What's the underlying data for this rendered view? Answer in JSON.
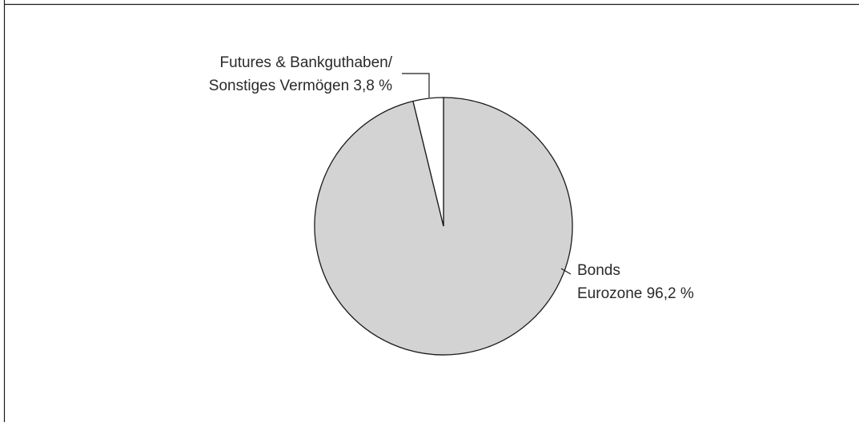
{
  "chart_data": {
    "type": "pie",
    "title": "",
    "slices": [
      {
        "name": "Bonds Eurozone",
        "value": 96.2,
        "label_lines": [
          "Bonds",
          "Eurozone 96,2 %"
        ],
        "color": "#d3d3d4"
      },
      {
        "name": "Futures & Bankguthaben/ Sonstiges Vermögen",
        "value": 3.8,
        "label_lines": [
          "Futures & Bankguthaben/",
          "Sonstiges Vermögen 3,8 %"
        ],
        "color": "#ffffff"
      }
    ],
    "start_angle_deg": 0,
    "direction": "clockwise",
    "stroke_color": "#1a1a1a"
  }
}
